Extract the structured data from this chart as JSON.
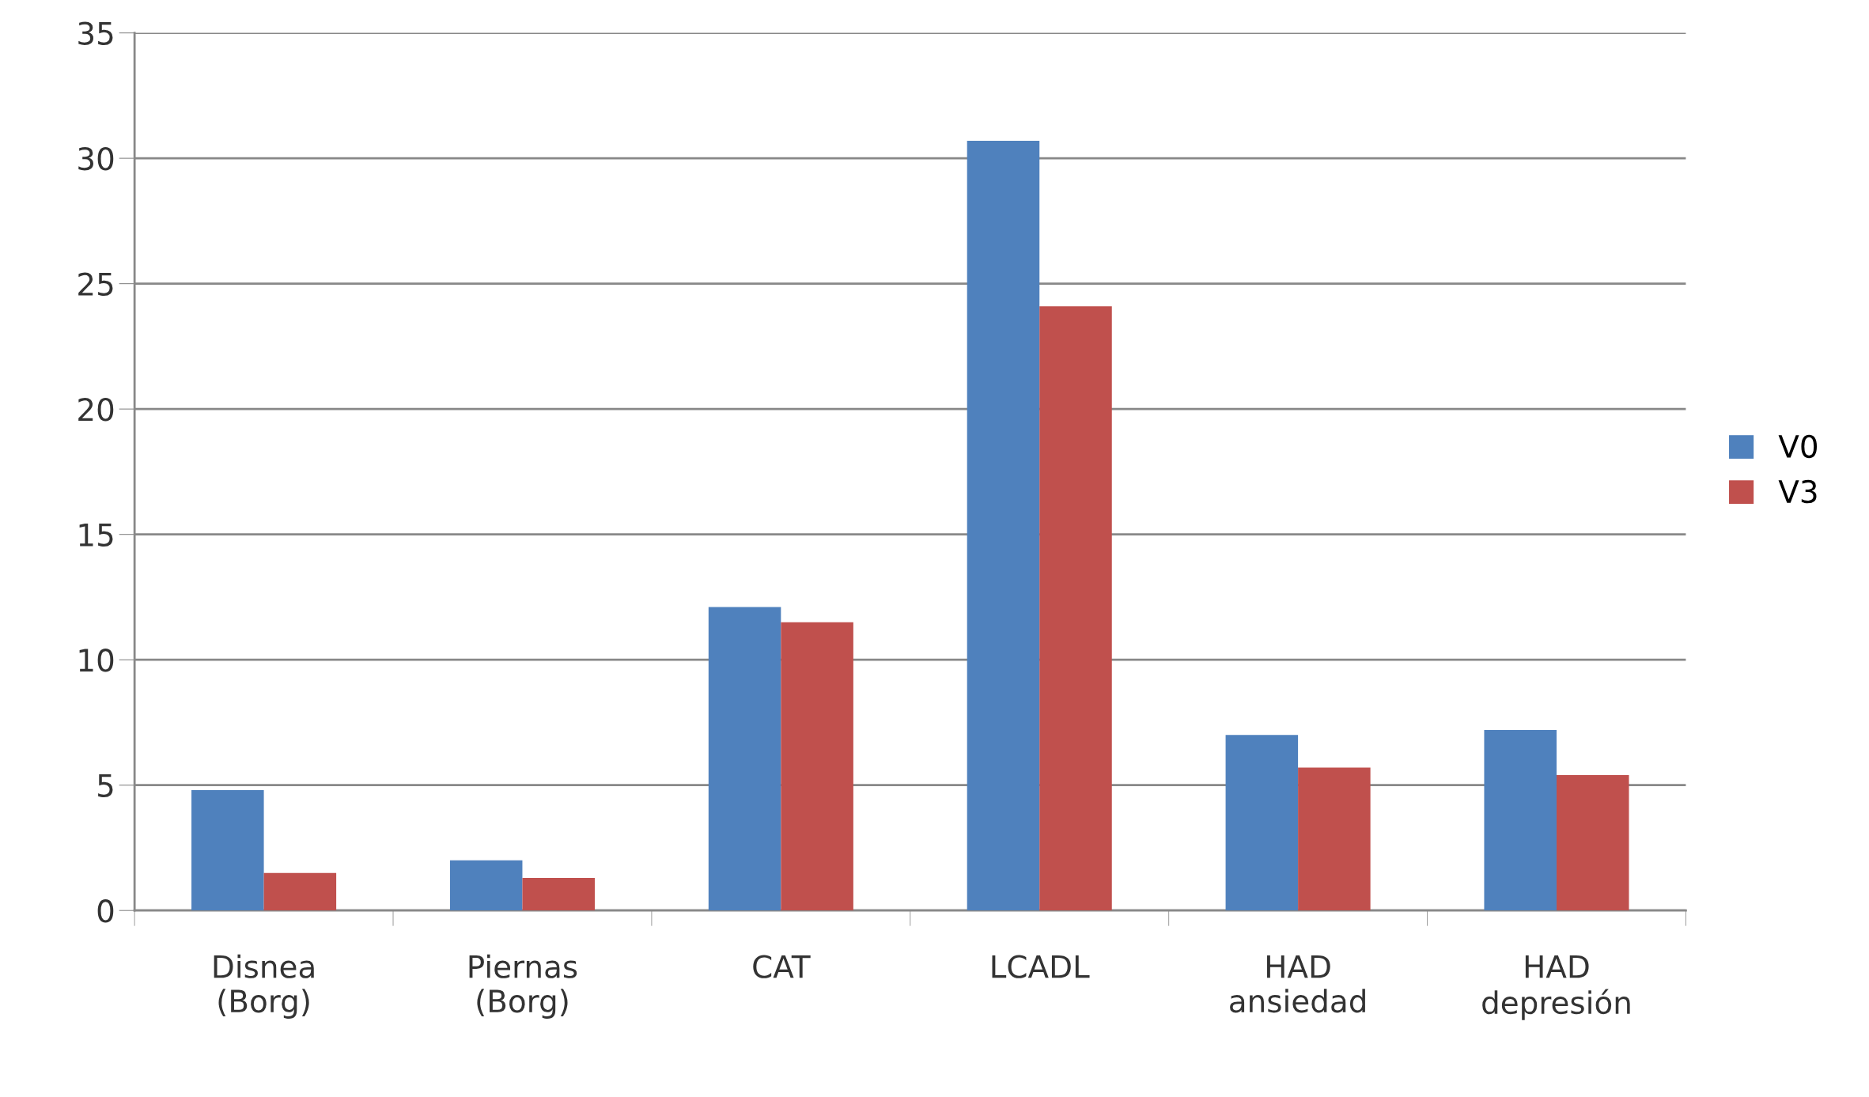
{
  "chart_data": {
    "type": "bar",
    "categories": [
      "Disnea\n(Borg)",
      "Piernas\n(Borg)",
      "CAT",
      "LCADL",
      "HAD\nansiedad",
      "HAD\ndepresión"
    ],
    "series": [
      {
        "name": "V0",
        "color": "#4f81bd",
        "values": [
          4.8,
          2.0,
          12.1,
          30.7,
          7.0,
          7.2
        ]
      },
      {
        "name": "V3",
        "color": "#c0504d",
        "values": [
          1.5,
          1.3,
          11.5,
          24.1,
          5.7,
          5.4
        ]
      }
    ],
    "ylim": [
      0,
      35
    ],
    "yticks": [
      0,
      5,
      10,
      15,
      20,
      25,
      30,
      35
    ],
    "grid": "y",
    "legend": "right"
  }
}
